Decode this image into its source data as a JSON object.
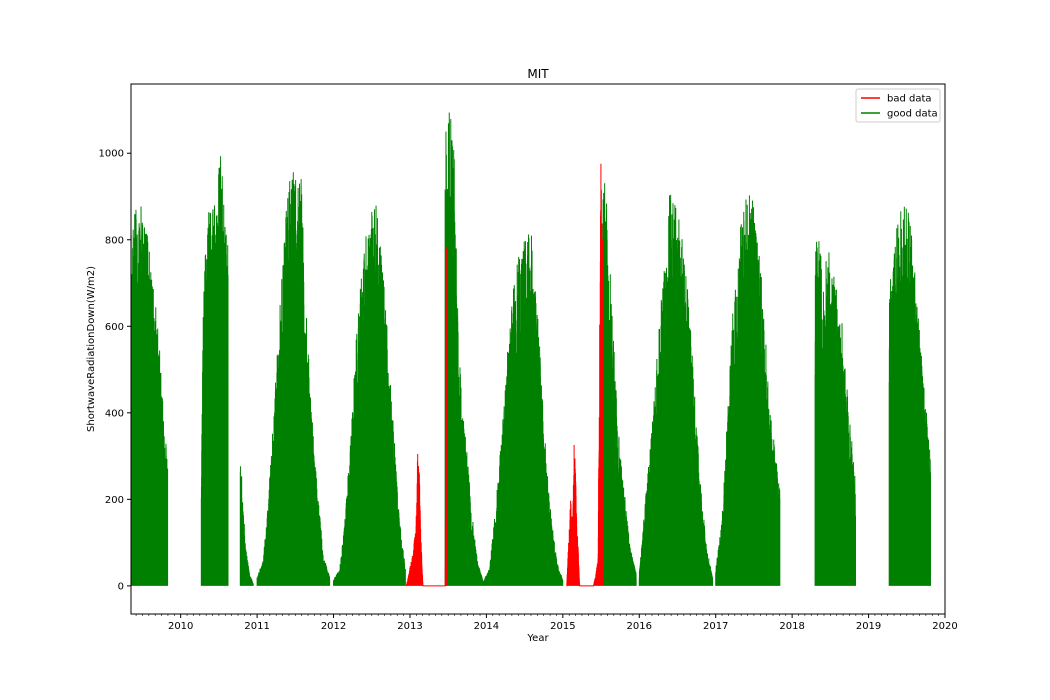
{
  "chart_data": {
    "type": "line",
    "title": "MIT",
    "xlabel": "Year",
    "ylabel": "ShortwaveRadiationDown(W/m2)",
    "xlim": [
      2009.35,
      2020.0
    ],
    "ylim": [
      -65,
      1160
    ],
    "x_ticks": [
      2010,
      2011,
      2012,
      2013,
      2014,
      2015,
      2016,
      2017,
      2018,
      2019,
      2020
    ],
    "x_tick_labels": [
      "2010",
      "2011",
      "2012",
      "2013",
      "2014",
      "2015",
      "2016",
      "2017",
      "2018",
      "2019",
      "2020"
    ],
    "y_ticks": [
      0,
      200,
      400,
      600,
      800,
      1000
    ],
    "y_tick_labels": [
      "0",
      "200",
      "400",
      "600",
      "800",
      "1000"
    ],
    "grid": false,
    "legend_position": "top-right",
    "series": [
      {
        "name": "bad data",
        "color": "#ff0000",
        "segments": [
          {
            "x": [
              2012.95,
              2013.02,
              2013.08,
              2013.1,
              2013.12,
              2013.14,
              2013.17,
              2013.22,
              2013.3,
              2013.4,
              2013.46,
              2013.48
            ],
            "y": [
              0,
              60,
              150,
              320,
              290,
              130,
              0,
              0,
              0,
              0,
              0,
              1090
            ]
          },
          {
            "x": [
              2015.05,
              2015.08,
              2015.1,
              2015.13,
              2015.15,
              2015.18,
              2015.22,
              2015.3,
              2015.4,
              2015.46,
              2015.49,
              2015.5,
              2015.52
            ],
            "y": [
              0,
              120,
              200,
              160,
              365,
              180,
              0,
              0,
              0,
              60,
              820,
              1070,
              950
            ]
          }
        ]
      },
      {
        "name": "good data",
        "color": "#008000",
        "segments": [
          {
            "x": [
              2009.35,
              2009.4,
              2009.45,
              2009.55,
              2009.65,
              2009.75,
              2009.8,
              2009.83
            ],
            "y": [
              840,
              860,
              915,
              830,
              700,
              500,
              350,
              270
            ]
          },
          {
            "x": [
              2010.27,
              2010.3,
              2010.37,
              2010.43,
              2010.48,
              2010.52,
              2010.57,
              2010.62
            ],
            "y": [
              260,
              700,
              900,
              880,
              910,
              1020,
              870,
              780
            ]
          },
          {
            "x": [
              2010.78,
              2010.8,
              2010.82,
              2010.85,
              2010.9,
              2010.95
            ],
            "y": [
              280,
              270,
              180,
              90,
              30,
              5
            ]
          },
          {
            "x": [
              2011.0,
              2011.08,
              2011.15,
              2011.22,
              2011.3,
              2011.38,
              2011.45,
              2011.52,
              2011.58,
              2011.62,
              2011.7,
              2011.78,
              2011.87,
              2011.95
            ],
            "y": [
              20,
              60,
              210,
              410,
              650,
              890,
              965,
              940,
              950,
              720,
              440,
              240,
              70,
              20
            ]
          },
          {
            "x": [
              2012.0,
              2012.08,
              2012.15,
              2012.22,
              2012.3,
              2012.38,
              2012.45,
              2012.55,
              2012.62,
              2012.7,
              2012.78,
              2012.86,
              2012.94
            ],
            "y": [
              15,
              40,
              160,
              330,
              580,
              760,
              840,
              890,
              790,
              600,
              380,
              160,
              40
            ]
          },
          {
            "x": [
              2013.46,
              2013.48,
              2013.52,
              2013.58,
              2013.63,
              2013.68,
              2013.74,
              2013.8,
              2013.88,
              2013.96
            ],
            "y": [
              1050,
              1095,
              1100,
              1010,
              600,
              430,
              320,
              190,
              60,
              10
            ]
          },
          {
            "x": [
              2013.96,
              2014.04,
              2014.12,
              2014.2,
              2014.28,
              2014.35,
              2014.44,
              2014.52,
              2014.58,
              2014.66,
              2014.75,
              2014.83,
              2014.92,
              2015.0
            ],
            "y": [
              10,
              40,
              180,
              350,
              560,
              700,
              820,
              800,
              850,
              660,
              400,
              190,
              60,
              15
            ]
          },
          {
            "x": [
              2015.52,
              2015.56,
              2015.6,
              2015.66,
              2015.72,
              2015.8,
              2015.88,
              2015.96
            ],
            "y": [
              980,
              960,
              800,
              580,
              380,
              230,
              90,
              30
            ]
          },
          {
            "x": [
              2016.0,
              2016.08,
              2016.16,
              2016.24,
              2016.32,
              2016.4,
              2016.48,
              2016.56,
              2016.64,
              2016.72,
              2016.8,
              2016.88,
              2016.96
            ],
            "y": [
              30,
              200,
              350,
              550,
              740,
              920,
              880,
              830,
              680,
              460,
              240,
              90,
              20
            ]
          },
          {
            "x": [
              2017.0,
              2017.08,
              2017.16,
              2017.24,
              2017.32,
              2017.4,
              2017.48,
              2017.56,
              2017.64,
              2017.72,
              2017.8,
              2017.84
            ],
            "y": [
              40,
              150,
              420,
              700,
              830,
              910,
              900,
              810,
              610,
              400,
              280,
              230
            ]
          },
          {
            "x": [
              2018.3,
              2018.32,
              2018.36,
              2018.4,
              2018.45,
              2018.52,
              2018.6,
              2018.68,
              2018.75,
              2018.8,
              2018.83
            ],
            "y": [
              820,
              800,
              830,
              660,
              780,
              760,
              700,
              560,
              390,
              300,
              240
            ]
          },
          {
            "x": [
              2019.27,
              2019.3,
              2019.36,
              2019.42,
              2019.48,
              2019.54,
              2019.6,
              2019.66,
              2019.72,
              2019.77,
              2019.81
            ],
            "y": [
              740,
              690,
              820,
              880,
              890,
              850,
              740,
              610,
              470,
              380,
              300
            ]
          }
        ]
      }
    ]
  }
}
